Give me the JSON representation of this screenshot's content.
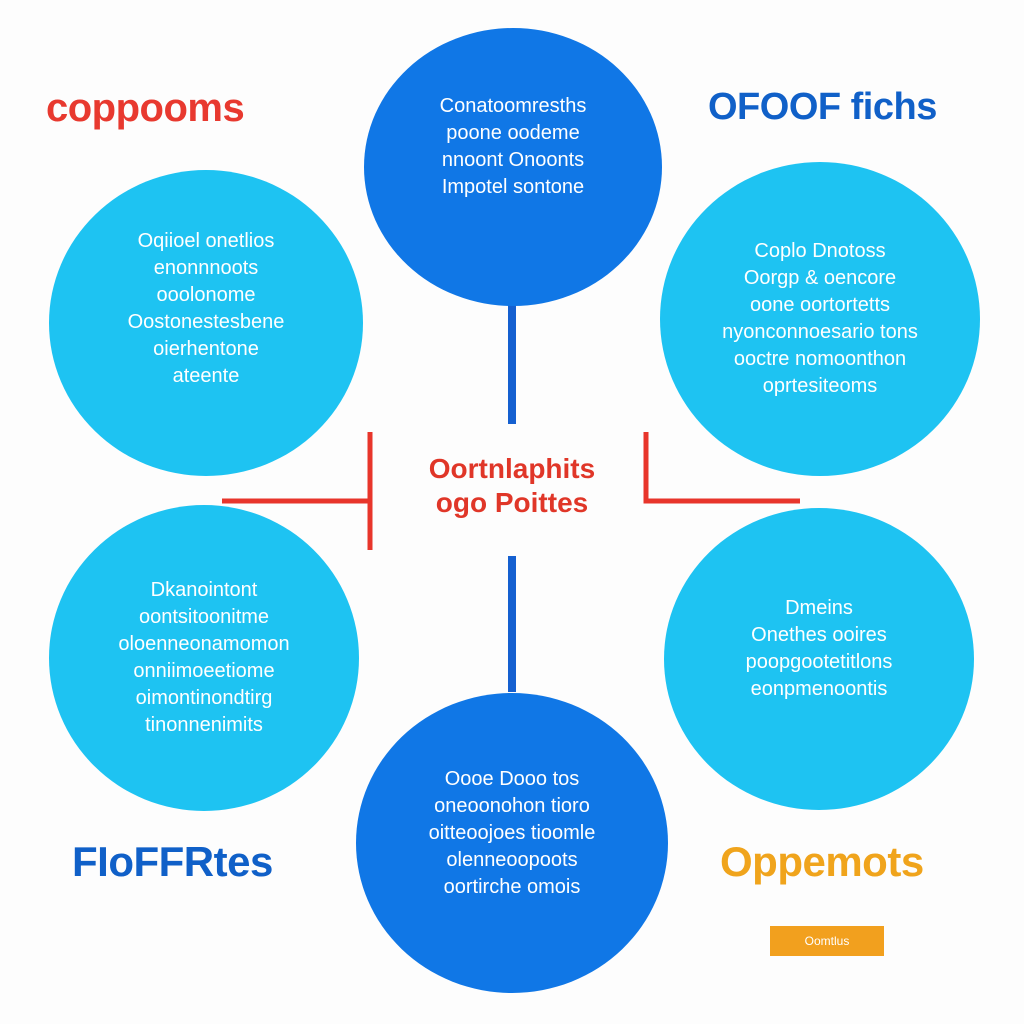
{
  "headings": {
    "top_left": "coppooms",
    "top_right": "OFOOF fichs",
    "bottom_left": "FIoFFRtes",
    "bottom_right": "Oppemots"
  },
  "center": {
    "lines": [
      "Oortnlaphits",
      "ogo Poittes"
    ]
  },
  "nodes": {
    "top": {
      "lines": [
        "Conatoomresths",
        "poone oodeme",
        "nnoont Onoonts",
        "Impotel sontone"
      ]
    },
    "left_upper": {
      "lines": [
        "Oqiioel onetlios",
        "enonnnoots",
        "ooolonome",
        "Oostonestesbene",
        "oierhentone",
        "ateente"
      ]
    },
    "right_upper": {
      "lines": [
        "Coplo Dnotoss",
        "Oorgp & oencore",
        "oone oortortetts",
        "nyonconnoesario tons",
        "ooctre nomoonthon",
        "oprtesiteoms"
      ]
    },
    "left_lower": {
      "lines": [
        "Dkanointont",
        "oontsitoonitme",
        "oloenneonamomon",
        "onniimoeetiome",
        "oimontinondtirg",
        "tinonnenimits"
      ]
    },
    "right_lower": {
      "lines": [
        "Dmeins",
        "Onethes ooires",
        "poopgootetitlons",
        "eonpmenoontis"
      ]
    },
    "bottom": {
      "lines": [
        "Oooe Dooo  tos",
        "oneoonohon tioro",
        "oitteoojoes tioomle",
        "olenneoopoots",
        "oortirche omois"
      ]
    }
  },
  "badge": {
    "label": "Oomtlus"
  },
  "colors": {
    "dark_circle": "#1077e6",
    "light_circle": "#1ec3f2",
    "accent_red": "#e8392f",
    "accent_blue": "#1060c8",
    "accent_orange": "#f0a41c",
    "connector_blue": "#1560d0",
    "connector_red": "#e8352b"
  }
}
